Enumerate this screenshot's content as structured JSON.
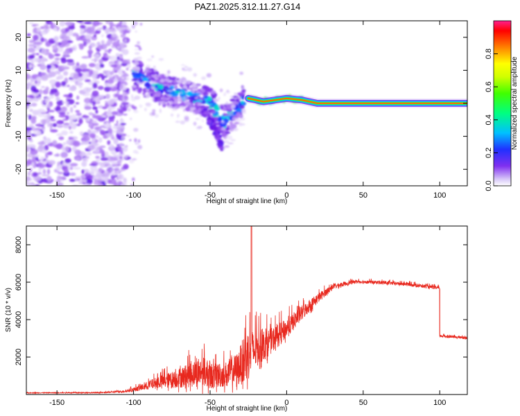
{
  "title": "PAZ1.2025.312.11.27.G14",
  "chart_data": [
    {
      "type": "heatmap",
      "name": "spectrogram",
      "xlabel": "Height of straight line (km)",
      "ylabel": "Frequency (Hz)",
      "xlim": [
        -170,
        118
      ],
      "ylim": [
        -25,
        25
      ],
      "xticks": [
        -150,
        -100,
        -50,
        0,
        50,
        100
      ],
      "xtick_labels": [
        "-150",
        "-100",
        "-50",
        "0",
        "50",
        "100"
      ],
      "yticks": [
        -20,
        -10,
        0,
        10,
        20
      ],
      "ytick_labels": [
        "-20",
        "-10",
        "0",
        "10",
        "20"
      ],
      "colorbar": {
        "label": "Normalized spectral amplitude",
        "range": [
          0,
          1
        ],
        "ticks": [
          0.0,
          0.2,
          0.4,
          0.6,
          0.8
        ],
        "tick_labels": [
          "0.0",
          "0.2",
          "0.4",
          "0.6",
          "0.8"
        ]
      },
      "features": {
        "noise_region_km": [
          -170,
          -108
        ],
        "noise_freq_hz": [
          -25,
          25
        ],
        "descending_track": [
          [
            -100,
            9
          ],
          [
            -90,
            6
          ],
          [
            -80,
            4
          ],
          [
            -70,
            3
          ],
          [
            -60,
            2
          ],
          [
            -50,
            0
          ],
          [
            -45,
            -3
          ],
          [
            -40,
            -6
          ],
          [
            -35,
            -3
          ],
          [
            -28,
            1
          ]
        ],
        "branch_track": [
          [
            -55,
            -2
          ],
          [
            -50,
            -5
          ],
          [
            -45,
            -10
          ],
          [
            -42,
            -13
          ]
        ],
        "carrier_line": [
          [
            -25,
            1.5
          ],
          [
            -15,
            0.5
          ],
          [
            0,
            1.5
          ],
          [
            10,
            1
          ],
          [
            20,
            0
          ],
          [
            118,
            0
          ]
        ]
      }
    },
    {
      "type": "line",
      "name": "snr",
      "xlabel": "Height of straight line (km)",
      "ylabel": "SNR (10 * v/v)",
      "xlim": [
        -170,
        118
      ],
      "ylim": [
        0,
        9000
      ],
      "xticks": [
        -150,
        -100,
        -50,
        0,
        50,
        100
      ],
      "xtick_labels": [
        "-150",
        "-100",
        "-50",
        "0",
        "50",
        "100"
      ],
      "yticks": [
        2000,
        4000,
        6000,
        8000
      ],
      "ytick_labels": [
        "2000",
        "4000",
        "6000",
        "8000"
      ],
      "color": "#e8281e",
      "envelope": [
        {
          "x": -170,
          "base": 80,
          "spread": 40
        },
        {
          "x": -120,
          "base": 90,
          "spread": 60
        },
        {
          "x": -105,
          "base": 150,
          "spread": 150
        },
        {
          "x": -95,
          "base": 300,
          "spread": 350
        },
        {
          "x": -85,
          "base": 500,
          "spread": 700
        },
        {
          "x": -75,
          "base": 600,
          "spread": 1000
        },
        {
          "x": -65,
          "base": 750,
          "spread": 1400
        },
        {
          "x": -55,
          "base": 900,
          "spread": 1800
        },
        {
          "x": -48,
          "base": 700,
          "spread": 1500
        },
        {
          "x": -40,
          "base": 800,
          "spread": 1500
        },
        {
          "x": -32,
          "base": 1000,
          "spread": 2000
        },
        {
          "x": -26,
          "base": 1500,
          "spread": 3200
        },
        {
          "x": -20,
          "base": 2000,
          "spread": 2200
        },
        {
          "x": -10,
          "base": 2600,
          "spread": 1500
        },
        {
          "x": 0,
          "base": 3300,
          "spread": 1200
        },
        {
          "x": 10,
          "base": 4200,
          "spread": 900
        },
        {
          "x": 20,
          "base": 5000,
          "spread": 600
        },
        {
          "x": 30,
          "base": 5700,
          "spread": 300
        },
        {
          "x": 45,
          "base": 6000,
          "spread": 200
        },
        {
          "x": 60,
          "base": 5950,
          "spread": 200
        },
        {
          "x": 80,
          "base": 5850,
          "spread": 200
        },
        {
          "x": 99,
          "base": 5650,
          "spread": 200
        },
        {
          "x": 100,
          "base": 3100,
          "spread": 150
        },
        {
          "x": 118,
          "base": 3000,
          "spread": 150
        }
      ],
      "spike": {
        "x": -23,
        "y": 9000
      }
    }
  ]
}
